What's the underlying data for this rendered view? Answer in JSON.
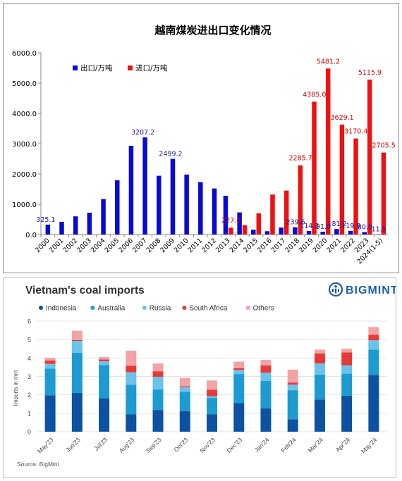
{
  "chart_data": [
    {
      "type": "bar",
      "title": "越南煤炭进出口变化情况",
      "legend_position": "top-left",
      "grid": false,
      "ylim": [
        0,
        6000
      ],
      "yticks": [
        "0.0",
        "1000.0",
        "2000.0",
        "3000.0",
        "4000.0",
        "5000.0",
        "6000.0"
      ],
      "categories": [
        "2000",
        "2001",
        "2002",
        "2003",
        "2004",
        "2005",
        "2006",
        "2007",
        "2008",
        "2009",
        "2010",
        "2011",
        "2012",
        "2013",
        "2014",
        "2015",
        "2016",
        "2017",
        "2018",
        "2019",
        "2020",
        "2021",
        "2022",
        "2023",
        "2024(1-5)"
      ],
      "series": [
        {
          "name": "出口/万吨",
          "color": "#0a0ad2",
          "values": [
            325.1,
            420,
            600,
            720,
            1170,
            1790,
            2930,
            3207.2,
            1940,
            2499.2,
            1980,
            1730,
            1520,
            1280,
            730,
            160,
            110,
            230,
            239.6,
            114.3,
            91.0,
            181.2,
            119.8,
            80.9,
            11.9
          ],
          "labels": [
            "325.1",
            "",
            "",
            "",
            "",
            "",
            "",
            "3207.2",
            "",
            "2499.2",
            "",
            "",
            "",
            "",
            "",
            "",
            "",
            "",
            "239.6",
            "114.3",
            "91.0",
            "181.2",
            "119.8",
            "80.9",
            "11.9"
          ]
        },
        {
          "name": "进口/万吨",
          "color": "#ee1111",
          "values": [
            0,
            0,
            0,
            0,
            0,
            0,
            0,
            0,
            0,
            0,
            0,
            0,
            0,
            227.6,
            310,
            700,
            1320,
            1450,
            2285.7,
            4385.0,
            5481.2,
            3629.1,
            3170.4,
            5115.9,
            2705.5
          ],
          "labels": [
            "",
            "",
            "",
            "",
            "",
            "",
            "",
            "",
            "",
            "",
            "",
            "",
            "",
            "227.6",
            "",
            "",
            "",
            "",
            "2285.7",
            "4385.0",
            "5481.2",
            "3629.1",
            "3170.4",
            "5115.9",
            "2705.5"
          ]
        }
      ]
    },
    {
      "type": "bar",
      "stacked": true,
      "title": "Vietnam's coal imports",
      "brand": "BIGMINT",
      "ylabel": "Imports in mnt",
      "source": "Source: BigMint",
      "legend_position": "top",
      "grid": true,
      "ylim": [
        0,
        6
      ],
      "yticks": [
        "0",
        "1",
        "2",
        "3",
        "4",
        "5",
        "6"
      ],
      "categories": [
        "May'23",
        "Jun'23",
        "Jul'23",
        "Aug'23",
        "Sep'23",
        "Oct'23",
        "Nov'23",
        "Dec'23",
        "Jan'24",
        "Feb'24",
        "Mar'24",
        "Apr'24",
        "May'24"
      ],
      "series": [
        {
          "name": "Indonesia",
          "color": "#0d52a2",
          "values": [
            1.98,
            2.1,
            1.82,
            0.95,
            1.18,
            1.12,
            0.95,
            1.55,
            1.27,
            0.68,
            1.75,
            1.95,
            3.08
          ]
        },
        {
          "name": "Australia",
          "color": "#1d9bd1",
          "values": [
            1.45,
            2.18,
            1.8,
            1.6,
            1.12,
            1.05,
            0.88,
            1.58,
            1.48,
            1.57,
            1.35,
            1.2,
            1.38
          ]
        },
        {
          "name": "Russia",
          "color": "#69c3ec",
          "values": [
            0.25,
            0.65,
            0.2,
            0.68,
            0.68,
            0.25,
            0.1,
            0.22,
            0.45,
            0.3,
            0.6,
            0.45,
            0.5
          ]
        },
        {
          "name": "South Africa",
          "color": "#e63a3a",
          "values": [
            0.18,
            0.05,
            0.1,
            0.35,
            0.3,
            0.05,
            0.35,
            0.1,
            0.4,
            0.12,
            0.55,
            0.7,
            0.3
          ]
        },
        {
          "name": "Others",
          "color": "#f2a3a3",
          "values": [
            0.14,
            0.5,
            0.13,
            0.82,
            0.42,
            0.45,
            0.5,
            0.35,
            0.3,
            0.7,
            0.2,
            0.2,
            0.42
          ]
        }
      ]
    }
  ]
}
